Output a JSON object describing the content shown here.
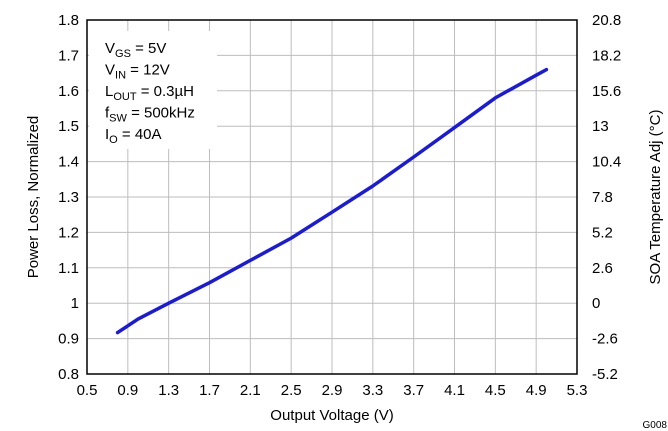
{
  "chart_data": {
    "type": "line",
    "xlabel": "Output Voltage (V)",
    "ylabel": "Power Loss, Normalized",
    "y2label": "SOA Temperature Adj (°C)",
    "xlim": [
      0.5,
      5.3
    ],
    "ylim": [
      0.8,
      1.8
    ],
    "y2lim": [
      -5.2,
      20.8
    ],
    "x_ticks": [
      "0.5",
      "0.9",
      "1.3",
      "1.7",
      "2.1",
      "2.5",
      "2.9",
      "3.3",
      "3.7",
      "4.1",
      "4.5",
      "4.9",
      "5.3"
    ],
    "y_ticks": [
      "0.8",
      "0.9",
      "1",
      "1.1",
      "1.2",
      "1.3",
      "1.4",
      "1.5",
      "1.6",
      "1.7",
      "1.8"
    ],
    "y2_ticks": [
      "-5.2",
      "-2.6",
      "0",
      "2.6",
      "5.2",
      "7.8",
      "10.4",
      "13",
      "15.6",
      "18.2",
      "20.8"
    ],
    "grid": true,
    "line_color": "#1a1adb",
    "series": [
      {
        "x": [
          0.8,
          1.0,
          1.3,
          1.7,
          2.1,
          2.5,
          2.9,
          3.3,
          3.7,
          4.1,
          4.5,
          4.9,
          5.0
        ],
        "values": [
          0.917,
          0.955,
          1.0,
          1.058,
          1.121,
          1.184,
          1.257,
          1.331,
          1.413,
          1.496,
          1.58,
          1.644,
          1.66
        ]
      }
    ],
    "conditions": [
      {
        "main": "V",
        "sub": "GS",
        "rest": " = 5V"
      },
      {
        "main": "V",
        "sub": "IN",
        "rest": " = 12V"
      },
      {
        "main": "L",
        "sub": "OUT",
        "rest": " = 0.3µH"
      },
      {
        "main": "f",
        "sub": "SW",
        "rest": " = 500kHz"
      },
      {
        "main": "I",
        "sub": "O",
        "rest": " = 40A"
      }
    ],
    "figure_id": "G008"
  }
}
